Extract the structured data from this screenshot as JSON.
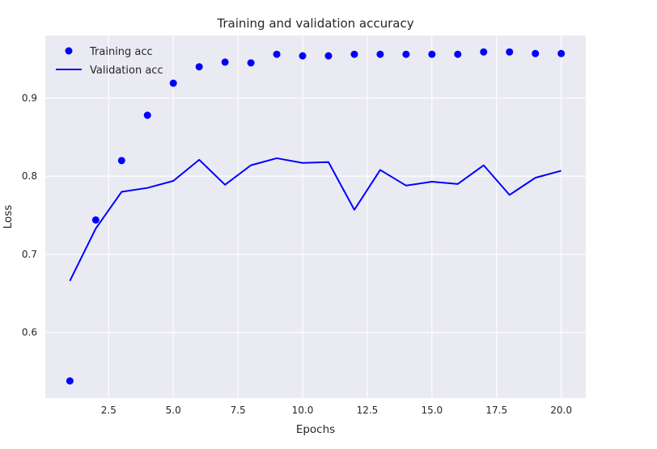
{
  "chart_data": {
    "type": "line",
    "title": "Training and validation accuracy",
    "xlabel": "Epochs",
    "ylabel": "Loss",
    "xlim": [
      0.05,
      20.95
    ],
    "ylim": [
      0.516,
      0.98
    ],
    "xticks": [
      2.5,
      5.0,
      7.5,
      10.0,
      12.5,
      15.0,
      17.5,
      20.0
    ],
    "xtick_labels": [
      "2.5",
      "5.0",
      "7.5",
      "10.0",
      "12.5",
      "15.0",
      "17.5",
      "20.0"
    ],
    "yticks": [
      0.6,
      0.7,
      0.8,
      0.9
    ],
    "ytick_labels": [
      "0.6",
      "0.7",
      "0.8",
      "0.9"
    ],
    "grid": true,
    "legend_position": "top-left",
    "background_color": "#eaeaf2",
    "series": [
      {
        "name": "Training acc",
        "style": "markers",
        "color": "#0000ff",
        "x": [
          1,
          2,
          3,
          4,
          5,
          6,
          7,
          8,
          9,
          10,
          11,
          12,
          13,
          14,
          15,
          16,
          17,
          18,
          19,
          20
        ],
        "values": [
          0.538,
          0.744,
          0.82,
          0.878,
          0.919,
          0.94,
          0.946,
          0.945,
          0.956,
          0.954,
          0.954,
          0.956,
          0.956,
          0.956,
          0.956,
          0.956,
          0.959,
          0.959,
          0.957,
          0.957
        ]
      },
      {
        "name": "Validation acc",
        "style": "line",
        "color": "#0000ff",
        "x": [
          1,
          2,
          3,
          4,
          5,
          6,
          7,
          8,
          9,
          10,
          11,
          12,
          13,
          14,
          15,
          16,
          17,
          18,
          19,
          20
        ],
        "values": [
          0.666,
          0.733,
          0.78,
          0.785,
          0.794,
          0.821,
          0.789,
          0.814,
          0.823,
          0.817,
          0.818,
          0.757,
          0.808,
          0.788,
          0.793,
          0.79,
          0.814,
          0.776,
          0.798,
          0.807
        ]
      }
    ]
  }
}
